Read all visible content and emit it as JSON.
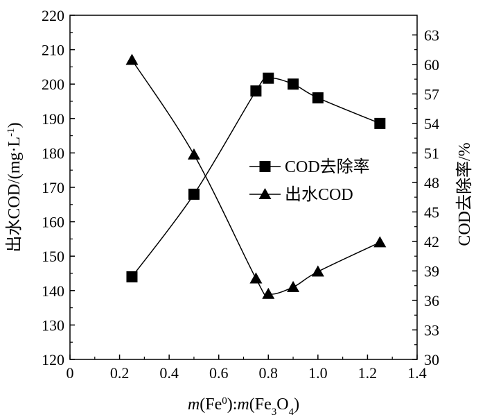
{
  "chart_data": {
    "type": "line",
    "title": "",
    "xlabel_parts": [
      "m",
      "(Fe",
      "0",
      "):",
      "m",
      "(Fe",
      "3",
      "O",
      "4",
      ")"
    ],
    "ylabel_left": "出水COD/(mg·L-1)",
    "ylabel_left_parts": [
      "出水COD/(mg·L",
      "-1",
      ")"
    ],
    "ylabel_right": "COD去除率/%",
    "xlim": [
      0,
      1.4
    ],
    "ylim_left": [
      120,
      220
    ],
    "ylim_right": [
      30,
      65
    ],
    "x_ticks": [
      0,
      0.2,
      0.4,
      0.6,
      0.8,
      1.0,
      1.2,
      1.4
    ],
    "x_tick_labels": [
      "0",
      "0.2",
      "0.4",
      "0.6",
      "0.8",
      "1.0",
      "1.2",
      "1.4"
    ],
    "y_left_ticks": [
      120,
      130,
      140,
      150,
      160,
      170,
      180,
      190,
      200,
      210,
      220
    ],
    "y_left_tick_labels": [
      "120",
      "130",
      "140",
      "150",
      "160",
      "170",
      "180",
      "190",
      "200",
      "210",
      "220"
    ],
    "y_right_ticks": [
      30,
      33,
      36,
      39,
      42,
      45,
      48,
      51,
      54,
      57,
      60,
      63
    ],
    "y_right_tick_labels": [
      "30",
      "33",
      "36",
      "39",
      "42",
      "45",
      "48",
      "51",
      "54",
      "57",
      "60",
      "63"
    ],
    "grid": false,
    "legend_position": "center-right",
    "series": [
      {
        "name": "COD去除率",
        "axis": "right",
        "marker": "square",
        "x": [
          0.25,
          0.5,
          0.75,
          0.8,
          0.9,
          1.0,
          1.25
        ],
        "y": [
          38.4,
          46.8,
          57.3,
          58.6,
          58.0,
          56.6,
          54.0
        ]
      },
      {
        "name": "出水COD",
        "axis": "left",
        "marker": "triangle",
        "x": [
          0.25,
          0.5,
          0.75,
          0.8,
          0.9,
          1.0,
          1.25
        ],
        "y": [
          207,
          179.5,
          143.5,
          139,
          141,
          145.5,
          154
        ]
      }
    ]
  }
}
